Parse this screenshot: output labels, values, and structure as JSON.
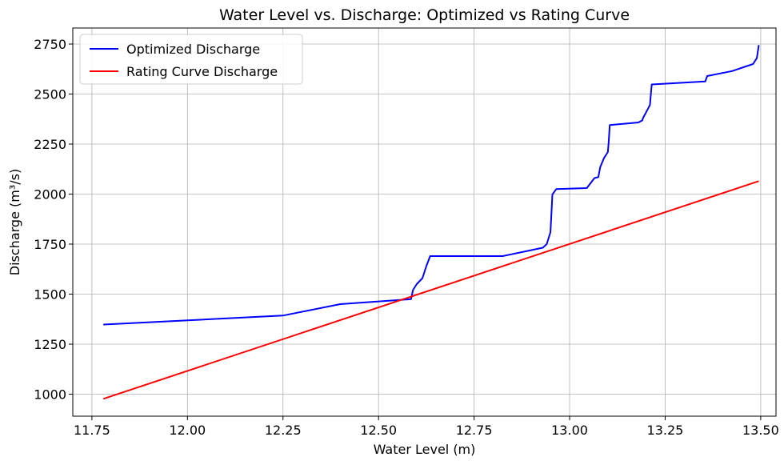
{
  "chart_data": {
    "type": "line",
    "title": "Water Level vs. Discharge: Optimized vs Rating Curve",
    "xlabel": "Water Level (m)",
    "ylabel": "Discharge (m³/s)",
    "xlim": [
      11.7,
      13.54
    ],
    "ylim": [
      890,
      2830
    ],
    "xticks": [
      11.75,
      12.0,
      12.25,
      12.5,
      12.75,
      13.0,
      13.25,
      13.5
    ],
    "xtick_labels": [
      "11.75",
      "12.00",
      "12.25",
      "12.50",
      "12.75",
      "13.00",
      "13.25",
      "13.50"
    ],
    "yticks": [
      1000,
      1250,
      1500,
      1750,
      2000,
      2250,
      2500,
      2750
    ],
    "ytick_labels": [
      "1000",
      "1250",
      "1500",
      "1750",
      "2000",
      "2250",
      "2500",
      "2750"
    ],
    "grid": true,
    "legend_position": "top-left",
    "series": [
      {
        "name": "Optimized Discharge",
        "color": "#0000ff",
        "x": [
          11.78,
          12.25,
          12.4,
          12.585,
          12.59,
          12.6,
          12.615,
          12.625,
          12.635,
          12.825,
          12.93,
          12.94,
          12.95,
          12.955,
          12.965,
          13.045,
          13.065,
          13.075,
          13.08,
          13.09,
          13.1,
          13.102,
          13.105,
          13.18,
          13.19,
          13.192,
          13.21,
          13.213,
          13.215,
          13.355,
          13.36,
          13.425,
          13.48,
          13.49,
          13.495
        ],
        "y": [
          1348,
          1393,
          1450,
          1475,
          1520,
          1550,
          1580,
          1640,
          1690,
          1690,
          1732,
          1750,
          1810,
          1998,
          2025,
          2030,
          2080,
          2085,
          2135,
          2180,
          2210,
          2255,
          2345,
          2358,
          2368,
          2380,
          2445,
          2510,
          2548,
          2563,
          2590,
          2615,
          2650,
          2680,
          2745
        ]
      },
      {
        "name": "Rating Curve Discharge",
        "color": "#ff0000",
        "x": [
          11.78,
          13.495
        ],
        "y": [
          977,
          2065
        ]
      }
    ]
  }
}
